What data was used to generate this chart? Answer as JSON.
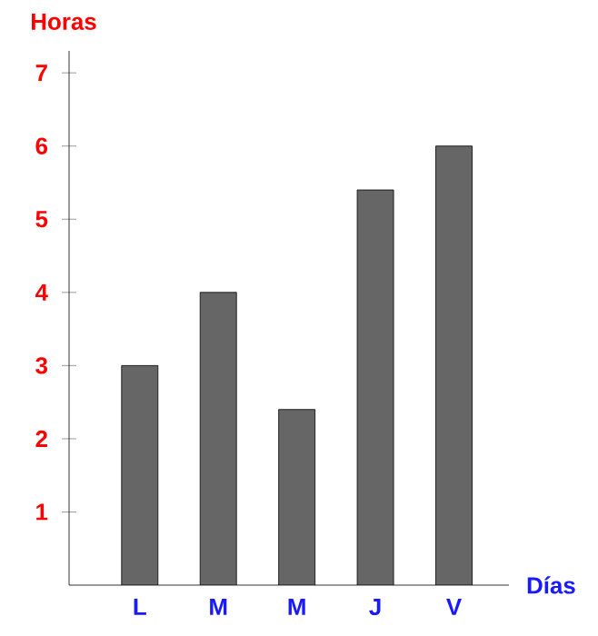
{
  "chart_data": {
    "type": "bar",
    "xlabel": "Días",
    "ylabel": "Horas",
    "categories": [
      "L",
      "M",
      "M",
      "J",
      "V"
    ],
    "values": [
      3,
      4,
      2.4,
      5.4,
      6
    ],
    "color": "#666666",
    "ylim": [
      0,
      7.3
    ],
    "yticks": [
      1,
      2,
      3,
      4,
      5,
      6,
      7
    ]
  }
}
